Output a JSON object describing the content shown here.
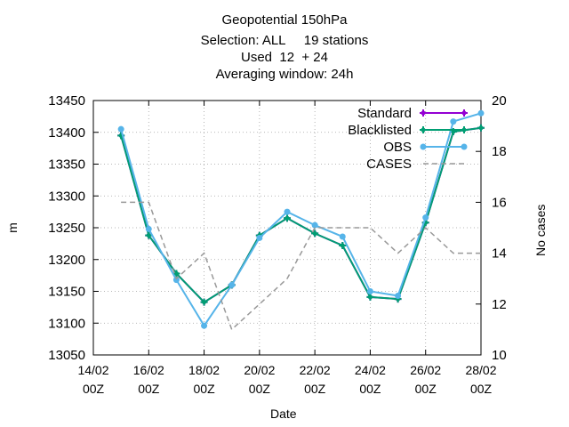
{
  "title_lines": [
    "Geopotential 150hPa",
    "Selection: ALL     19 stations",
    "Used  12  + 24",
    "Averaging window: 24h"
  ],
  "chart_data": {
    "type": "line",
    "title": "Geopotential 150hPa",
    "xlabel": "Date",
    "ylabel": "m",
    "y2label": "No cases",
    "x_ticks": [
      "14/02 00Z",
      "16/02 00Z",
      "18/02 00Z",
      "20/02 00Z",
      "22/02 00Z",
      "24/02 00Z",
      "26/02 00Z",
      "28/02 00Z"
    ],
    "x_tick_days": [
      14,
      16,
      18,
      20,
      22,
      24,
      26,
      28
    ],
    "xlim_days": [
      14,
      28
    ],
    "ylim": [
      13050,
      13450
    ],
    "y_ticks": [
      13050,
      13100,
      13150,
      13200,
      13250,
      13300,
      13350,
      13400,
      13450
    ],
    "y2lim": [
      10,
      20
    ],
    "y2_ticks": [
      10,
      12,
      14,
      16,
      18,
      20
    ],
    "grid": true,
    "legend_position": "top-right",
    "series": [
      {
        "name": "Standard",
        "axis": "y",
        "color": "#9400d3",
        "style": "solid",
        "marker": "plus",
        "x_days": [
          15,
          16,
          17,
          18,
          19,
          20,
          21,
          22,
          23,
          24,
          25,
          26,
          27,
          28
        ],
        "values": [
          13395,
          13238,
          13178,
          13133,
          13160,
          13238,
          13265,
          13241,
          13222,
          13141,
          13138,
          13258,
          13401,
          13407
        ]
      },
      {
        "name": "Blacklisted",
        "axis": "y",
        "color": "#009e73",
        "style": "solid",
        "marker": "plus",
        "x_days": [
          15,
          16,
          17,
          18,
          19,
          20,
          21,
          22,
          23,
          24,
          25,
          26,
          27,
          28
        ],
        "values": [
          13395,
          13238,
          13178,
          13133,
          13160,
          13238,
          13265,
          13241,
          13222,
          13141,
          13138,
          13258,
          13401,
          13407
        ]
      },
      {
        "name": "OBS",
        "axis": "y",
        "color": "#56b4e9",
        "style": "solid",
        "marker": "dot",
        "x_days": [
          15,
          16,
          17,
          18,
          19,
          20,
          21,
          22,
          23,
          24,
          25,
          26,
          27,
          28
        ],
        "values": [
          13405,
          13248,
          13168,
          13096,
          13160,
          13234,
          13275,
          13254,
          13236,
          13150,
          13143,
          13266,
          13417,
          13430
        ]
      },
      {
        "name": "CASES",
        "axis": "y2",
        "color": "#999999",
        "style": "dashed",
        "marker": "none",
        "x_days": [
          15,
          16,
          17,
          18,
          19,
          20,
          21,
          22,
          23,
          24,
          25,
          26,
          27,
          28
        ],
        "values": [
          16,
          16,
          13,
          14,
          11,
          12,
          13,
          15,
          15,
          15,
          14,
          15,
          14,
          14
        ]
      }
    ]
  }
}
